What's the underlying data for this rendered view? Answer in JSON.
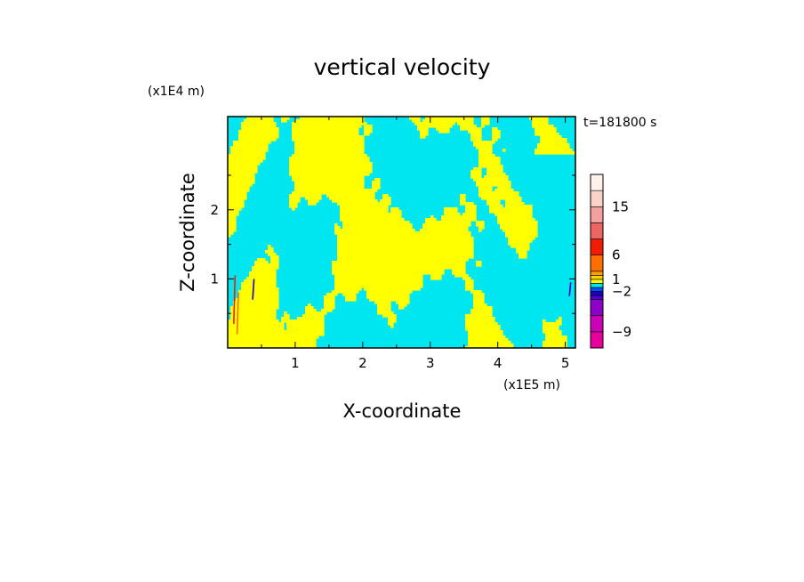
{
  "chart_data": {
    "type": "heatmap",
    "title": "vertical velocity",
    "xlabel": "X-coordinate",
    "ylabel": "Z-coordinate",
    "x_unit": "(x1E5 m)",
    "y_unit": "(x1E4 m)",
    "time_label": "t=181800 s",
    "xlim": [
      0,
      5.15
    ],
    "ylim": [
      0,
      3.35
    ],
    "x_ticks": [
      1,
      2,
      3,
      4,
      5
    ],
    "y_ticks": [
      1,
      2
    ],
    "x_tick_labels": [
      "1",
      "2",
      "3",
      "4",
      "5"
    ],
    "y_tick_labels": [
      "1",
      "2"
    ],
    "field_colors": {
      "negative": "#00e6f0",
      "positive": "#ffff00"
    },
    "colorbar": {
      "labels": [
        "15",
        "6",
        "1",
        "−2",
        "−9"
      ],
      "label_values": [
        15,
        6,
        1,
        -2,
        -9
      ],
      "levels": [
        {
          "from": -12,
          "to": -9,
          "color": "#e8009c"
        },
        {
          "from": -9,
          "to": -6,
          "color": "#cc00b4"
        },
        {
          "from": -6,
          "to": -4,
          "color": "#8c00c8"
        },
        {
          "from": -4,
          "to": -3,
          "color": "#5000d2"
        },
        {
          "from": -3,
          "to": -2,
          "color": "#1e00be"
        },
        {
          "from": -2,
          "to": -1,
          "color": "#0050ff"
        },
        {
          "from": -1,
          "to": 0,
          "color": "#00e6f0"
        },
        {
          "from": 0,
          "to": 1,
          "color": "#ffff00"
        },
        {
          "from": 1,
          "to": 2,
          "color": "#ffd200"
        },
        {
          "from": 2,
          "to": 3,
          "color": "#ffa000"
        },
        {
          "from": 3,
          "to": 6,
          "color": "#ff6e00"
        },
        {
          "from": 6,
          "to": 9,
          "color": "#f01e00"
        },
        {
          "from": 9,
          "to": 12,
          "color": "#ec6464"
        },
        {
          "from": 12,
          "to": 15,
          "color": "#f5a0a0"
        },
        {
          "from": 15,
          "to": 18,
          "color": "#fad2c8"
        },
        {
          "from": 18,
          "to": 21,
          "color": "#fff0ea"
        }
      ]
    }
  }
}
